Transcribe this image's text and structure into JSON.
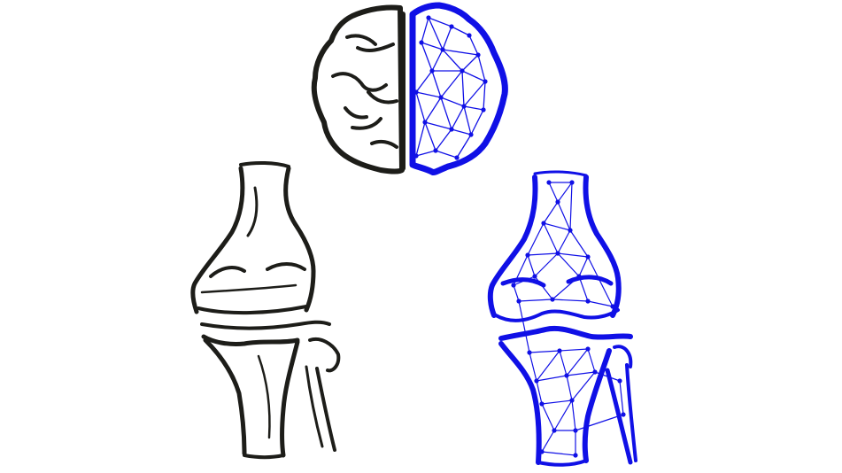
{
  "illustration": {
    "colors": {
      "background": "#ffffff",
      "sketch": "#1d1d19",
      "network": "#1010e6"
    },
    "icons": [
      "brain-half-sketch-icon",
      "brain-half-network-icon",
      "knee-joint-sketch-icon",
      "knee-joint-network-icon"
    ]
  }
}
